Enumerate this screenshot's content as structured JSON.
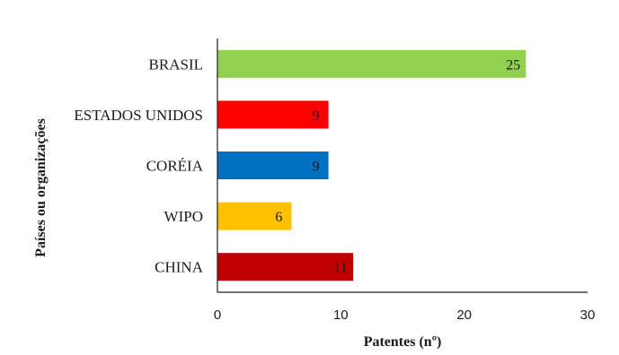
{
  "chart_data": {
    "type": "bar",
    "orientation": "horizontal",
    "categories": [
      "BRASIL",
      "ESTADOS UNIDOS",
      "CORÉIA",
      "WIPO",
      "CHINA"
    ],
    "values": [
      25,
      9,
      9,
      6,
      11
    ],
    "colors": [
      "#92d050",
      "#ff0000",
      "#0070c0",
      "#ffc000",
      "#c00000"
    ],
    "data_labels": [
      "25",
      "9",
      "9",
      "6",
      "11"
    ],
    "xlabel": "Patentes (nº)",
    "ylabel": "Países ou organizações",
    "xlim": [
      0,
      30
    ],
    "xticks": [
      0,
      10,
      20,
      30
    ],
    "xtick_labels": [
      "0",
      "10",
      "20",
      "30"
    ],
    "grid": false,
    "legend": false
  }
}
